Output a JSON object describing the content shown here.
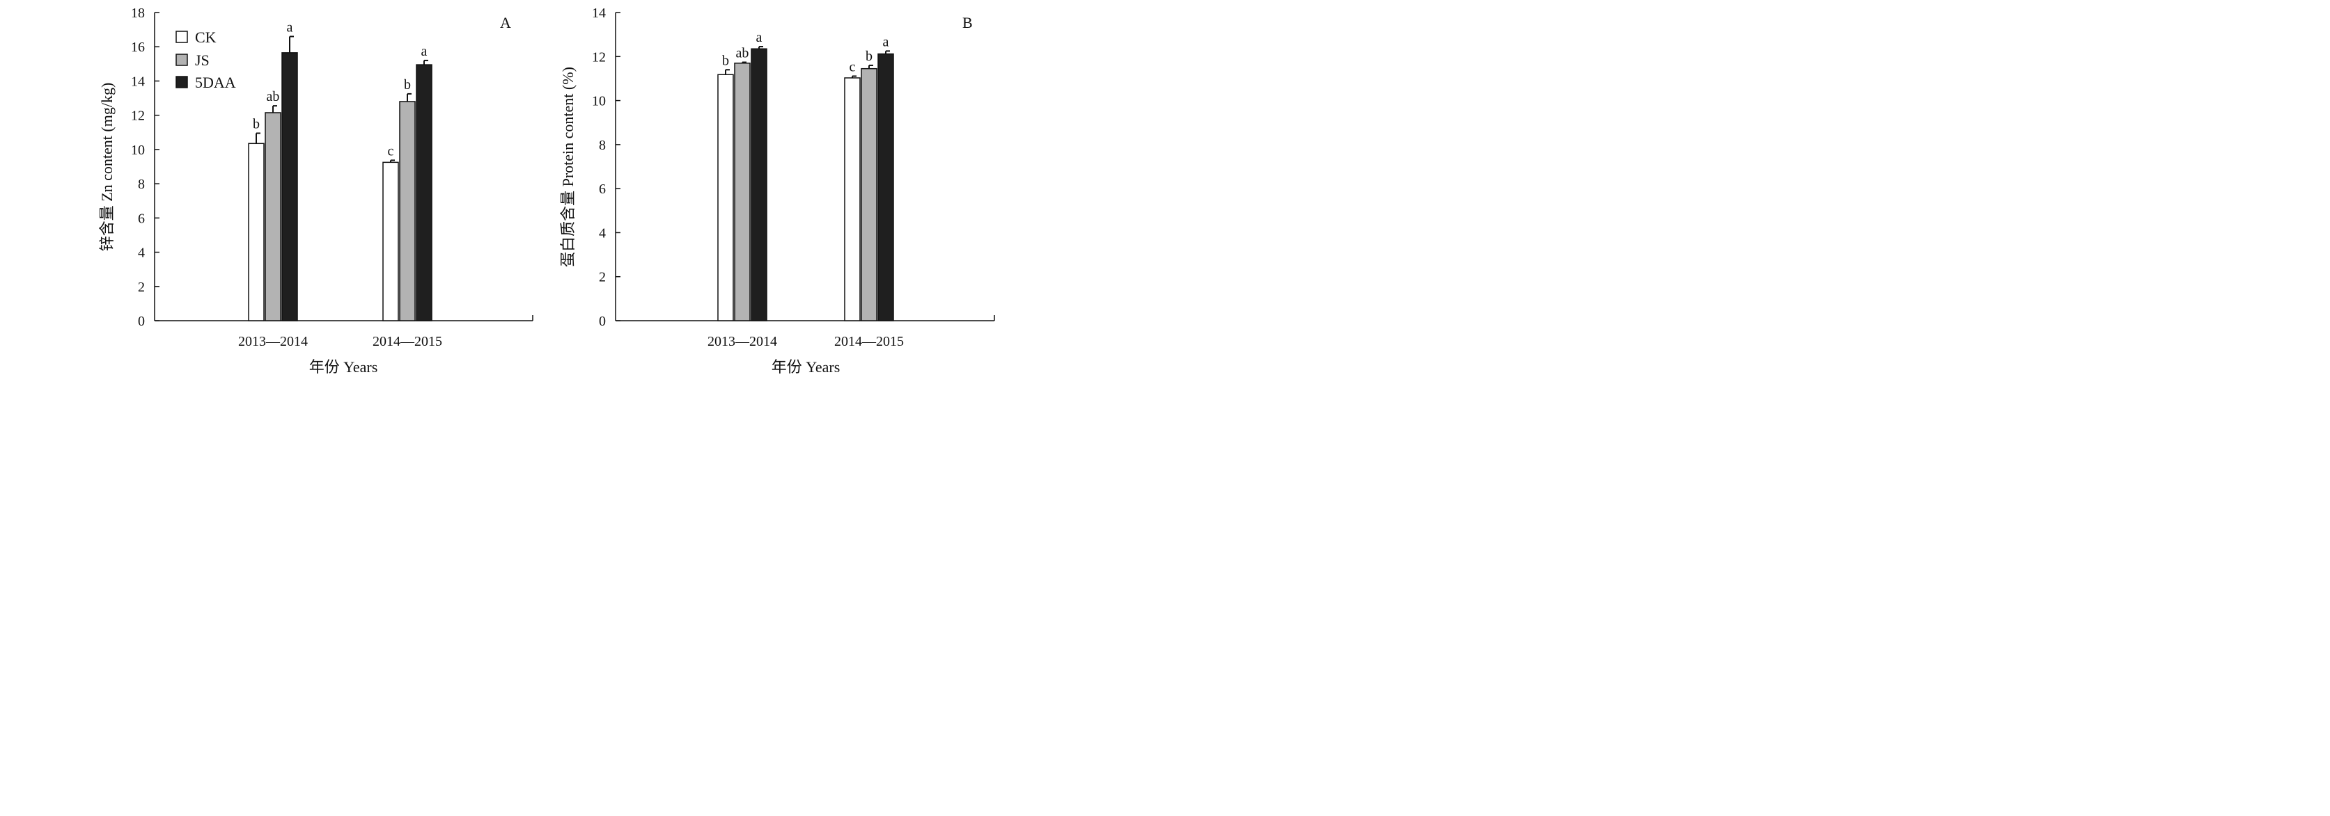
{
  "chart_data": [
    {
      "type": "bar",
      "panel_label": "A",
      "categories": [
        "2013—2014",
        "2014—2015"
      ],
      "xlabel": "年份 Years",
      "ylabel": "锌含量 Zn content (mg/kg)",
      "ylim": [
        0,
        18
      ],
      "yticks": [
        "0",
        "2",
        "4",
        "6",
        "8",
        "10",
        "12",
        "14",
        "16",
        "18"
      ],
      "legend": {
        "position": "top-left"
      },
      "series": [
        {
          "name": "CK",
          "fill": "#ffffff",
          "values": [
            10.35,
            9.25
          ],
          "errors": [
            0.6,
            0.12
          ],
          "letters": [
            "b",
            "c"
          ]
        },
        {
          "name": "JS",
          "fill": "#b3b3b3",
          "values": [
            12.15,
            12.8
          ],
          "errors": [
            0.4,
            0.45
          ],
          "letters": [
            "ab",
            "b"
          ]
        },
        {
          "name": "5DAA",
          "fill": "#1f1f1f",
          "values": [
            15.65,
            14.95
          ],
          "errors": [
            0.95,
            0.25
          ],
          "letters": [
            "a",
            "a"
          ]
        }
      ]
    },
    {
      "type": "bar",
      "panel_label": "B",
      "categories": [
        "2013—2014",
        "2014—2015"
      ],
      "xlabel": "年份 Years",
      "ylabel": "蛋白质含量 Protein content (%)",
      "ylim": [
        0,
        14
      ],
      "yticks": [
        "0",
        "2",
        "4",
        "6",
        "8",
        "10",
        "12",
        "14"
      ],
      "series": [
        {
          "name": "CK",
          "fill": "#ffffff",
          "values": [
            11.18,
            11.03
          ],
          "errors": [
            0.22,
            0.08
          ],
          "letters": [
            "b",
            "c"
          ]
        },
        {
          "name": "JS",
          "fill": "#b3b3b3",
          "values": [
            11.7,
            11.45
          ],
          "errors": [
            0.04,
            0.15
          ],
          "letters": [
            "ab",
            "b"
          ]
        },
        {
          "name": "5DAA",
          "fill": "#1f1f1f",
          "values": [
            12.35,
            12.12
          ],
          "errors": [
            0.1,
            0.13
          ],
          "letters": [
            "a",
            "a"
          ]
        }
      ]
    }
  ]
}
